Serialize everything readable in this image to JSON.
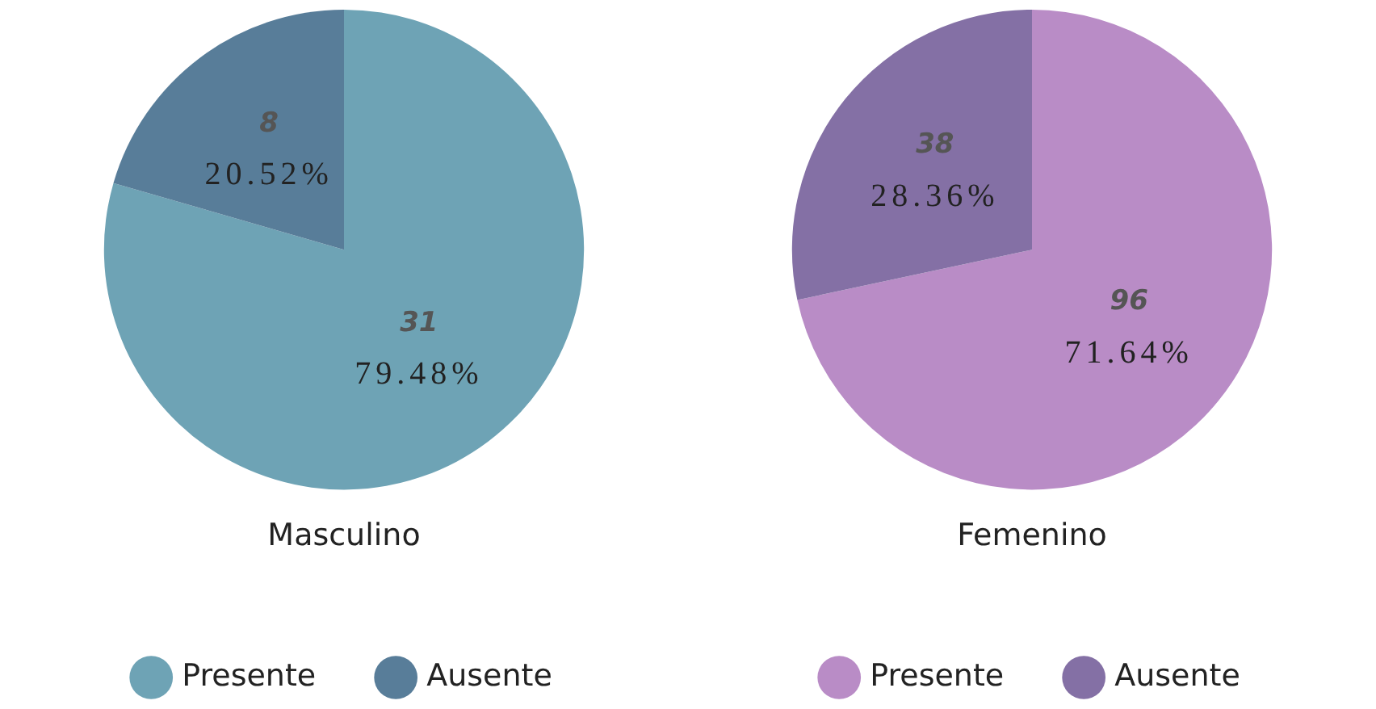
{
  "chart_data": [
    {
      "type": "pie",
      "title": "Masculino",
      "categories": [
        "Presente",
        "Ausente"
      ],
      "values": [
        79.48,
        20.52
      ],
      "colors": [
        "#6ea3b5",
        "#587d99"
      ],
      "value_labels": [
        "79.48%",
        "20.52%"
      ],
      "annotations": [
        {
          "text": "31",
          "x": "Presente"
        },
        {
          "text": "8",
          "x": "Ausente"
        }
      ],
      "legend": "bottom"
    },
    {
      "type": "pie",
      "title": "Femenino",
      "categories": [
        "Presente",
        "Ausente"
      ],
      "values": [
        71.64,
        28.36
      ],
      "colors": [
        "#b98cc6",
        "#8470a5"
      ],
      "value_labels": [
        "71.64%",
        "28.36%"
      ],
      "annotations": [
        {
          "text": "96",
          "x": "Presente"
        },
        {
          "text": "38",
          "x": "Ausente"
        }
      ],
      "legend": "bottom"
    }
  ]
}
